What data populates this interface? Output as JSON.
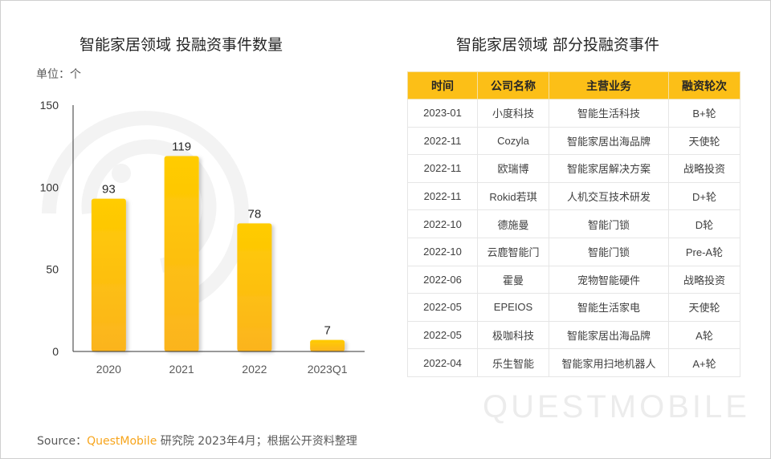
{
  "left_panel": {
    "title": "智能家居领域 投融资事件数量",
    "unit_label": "单位：个"
  },
  "chart_data": {
    "type": "bar",
    "title": "智能家居领域 投融资事件数量",
    "xlabel": "",
    "ylabel": "单位：个",
    "categories": [
      "2020",
      "2021",
      "2022",
      "2023Q1"
    ],
    "values": [
      93,
      119,
      78,
      7
    ],
    "ylim": [
      0,
      150
    ],
    "yticks": [
      0,
      50,
      100,
      150
    ],
    "grid": false,
    "legend": "none",
    "bar_color_top": "#ffcc00",
    "bar_color_bottom": "#fbb41f"
  },
  "right_panel": {
    "title": "智能家居领域 部分投融资事件",
    "table": {
      "headers": [
        "时间",
        "公司名称",
        "主营业务",
        "融资轮次"
      ],
      "rows": [
        [
          "2023-01",
          "小度科技",
          "智能生活科技",
          "B+轮"
        ],
        [
          "2022-11",
          "Cozyla",
          "智能家居出海品牌",
          "天使轮"
        ],
        [
          "2022-11",
          "欧瑞博",
          "智能家居解决方案",
          "战略投资"
        ],
        [
          "2022-11",
          "Rokid若琪",
          "人机交互技术研发",
          "D+轮"
        ],
        [
          "2022-10",
          "德施曼",
          "智能门锁",
          "D轮"
        ],
        [
          "2022-10",
          "云鹿智能门",
          "智能门锁",
          "Pre-A轮"
        ],
        [
          "2022-06",
          "霍曼",
          "宠物智能硬件",
          "战略投资"
        ],
        [
          "2022-05",
          "EPEIOS",
          "智能生活家电",
          "天使轮"
        ],
        [
          "2022-05",
          "极咖科技",
          "智能家居出海品牌",
          "A轮"
        ],
        [
          "2022-04",
          "乐生智能",
          "智能家用扫地机器人",
          "A+轮"
        ]
      ],
      "header_color": "#fcbf17"
    }
  },
  "footer": {
    "source_prefix": "Source：",
    "brand": "QuestMobile",
    "source_suffix": "研究院 2023年4月；根据公开资料整理",
    "brand_color": "#f7a51c"
  },
  "watermark": {
    "text": "QUESTMOBILE"
  }
}
